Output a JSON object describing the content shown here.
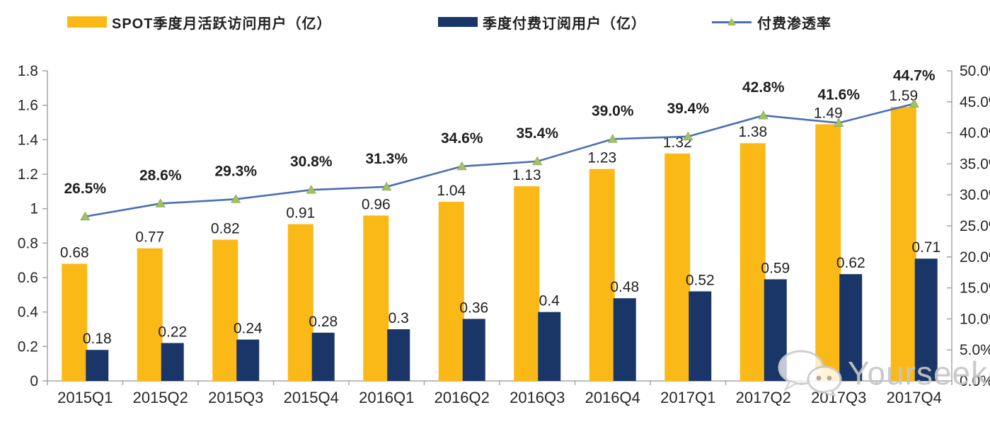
{
  "legend": {
    "mau_label": "SPOT季度月活跃访问用户（亿）",
    "sub_label": "季度付费订阅用户（亿）",
    "penetration_label": "付费渗透率"
  },
  "watermark": {
    "icon": "wechat-icon",
    "text": "Yourseeker"
  },
  "colors": {
    "mau_bar": "#FBB917",
    "sub_bar": "#1A3668",
    "line": "#4a6fb5",
    "marker_green": "#A3C163",
    "marker_edge": "#7da04b",
    "axis_gray": "#a6a6a6",
    "tick_text": "#262626",
    "label_text": "#1f1f1f",
    "watermark_gray": "#c6c6c6"
  },
  "chart_data": {
    "type": "bar",
    "subtype": "grouped bars with secondary-axis line",
    "title": "",
    "xlabel": "",
    "ylabel_left": "亿 (hundred millions of users)",
    "ylabel_right": "付费渗透率 (%)",
    "grid": false,
    "legend_position": "top",
    "categories": [
      "2015Q1",
      "2015Q2",
      "2015Q3",
      "2015Q4",
      "2016Q1",
      "2016Q2",
      "2016Q3",
      "2016Q4",
      "2017Q1",
      "2017Q2",
      "2017Q3",
      "2017Q4"
    ],
    "series": [
      {
        "name": "SPOT季度月活跃访问用户（亿）",
        "type": "bar",
        "axis": "left",
        "values": [
          0.68,
          0.77,
          0.82,
          0.91,
          0.96,
          1.04,
          1.13,
          1.23,
          1.32,
          1.38,
          1.49,
          1.59
        ],
        "labels": [
          "0.68",
          "0.77",
          "0.82",
          "0.91",
          "0.96",
          "1.04",
          "1.13",
          "1.23",
          "1.32",
          "1.38",
          "1.49",
          "1.59"
        ]
      },
      {
        "name": "季度付费订阅用户（亿）",
        "type": "bar",
        "axis": "left",
        "values": [
          0.18,
          0.22,
          0.24,
          0.28,
          0.3,
          0.36,
          0.4,
          0.48,
          0.52,
          0.59,
          0.62,
          0.71
        ],
        "labels": [
          "0.18",
          "0.22",
          "0.24",
          "0.28",
          "0.3",
          "0.36",
          "0.4",
          "0.48",
          "0.52",
          "0.59",
          "0.62",
          "0.71"
        ]
      },
      {
        "name": "付费渗透率",
        "type": "line",
        "axis": "right",
        "values": [
          26.5,
          28.6,
          29.3,
          30.8,
          31.3,
          34.6,
          35.4,
          39.0,
          39.4,
          42.8,
          41.6,
          44.7
        ],
        "labels": [
          "26.5%",
          "28.6%",
          "29.3%",
          "30.8%",
          "31.3%",
          "34.6%",
          "35.4%",
          "39.0%",
          "39.4%",
          "42.8%",
          "41.6%",
          "44.7%"
        ]
      }
    ],
    "left_axis": {
      "min": 0,
      "max": 1.8,
      "ticks": [
        "0",
        "0.2",
        "0.4",
        "0.6",
        "0.8",
        "1",
        "1.2",
        "1.4",
        "1.6",
        "1.8"
      ]
    },
    "right_axis": {
      "min": 0,
      "max": 50,
      "ticks": [
        "0.0%",
        "5.0%",
        "10.0%",
        "15.0%",
        "20.0%",
        "25.0%",
        "30.0%",
        "35.0%",
        "40.0%",
        "45.0%",
        "50.0%"
      ]
    }
  }
}
